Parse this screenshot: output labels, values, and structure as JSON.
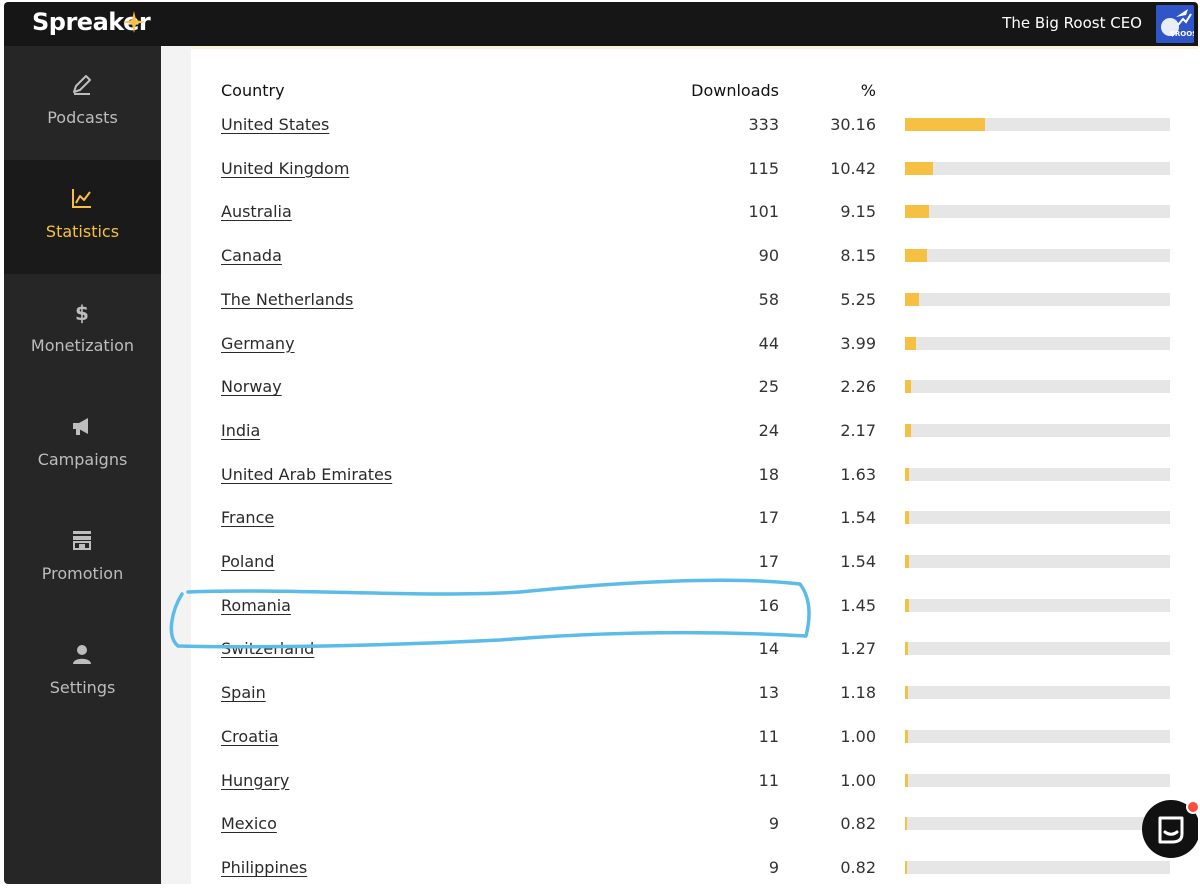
{
  "header": {
    "logo": "Spreaker",
    "user_name": "The Big Roost CEO",
    "avatar_text": "$ROOS"
  },
  "sidebar": {
    "items": [
      {
        "label": "Podcasts",
        "icon": "pencil-icon",
        "active": false
      },
      {
        "label": "Statistics",
        "icon": "chart-icon",
        "active": true
      },
      {
        "label": "Monetization",
        "icon": "dollar-icon",
        "active": false
      },
      {
        "label": "Campaigns",
        "icon": "megaphone-icon",
        "active": false
      },
      {
        "label": "Promotion",
        "icon": "storefront-icon",
        "active": false
      },
      {
        "label": "Settings",
        "icon": "user-icon",
        "active": false
      }
    ]
  },
  "table": {
    "headers": {
      "country": "Country",
      "downloads": "Downloads",
      "percent": "%"
    },
    "highlighted_country": "Romania",
    "rows": [
      {
        "country": "United States",
        "downloads": "333",
        "percent": "30.16"
      },
      {
        "country": "United Kingdom",
        "downloads": "115",
        "percent": "10.42"
      },
      {
        "country": "Australia",
        "downloads": "101",
        "percent": "9.15"
      },
      {
        "country": "Canada",
        "downloads": "90",
        "percent": "8.15"
      },
      {
        "country": "The Netherlands",
        "downloads": "58",
        "percent": "5.25"
      },
      {
        "country": "Germany",
        "downloads": "44",
        "percent": "3.99"
      },
      {
        "country": "Norway",
        "downloads": "25",
        "percent": "2.26"
      },
      {
        "country": "India",
        "downloads": "24",
        "percent": "2.17"
      },
      {
        "country": "United Arab Emirates",
        "downloads": "18",
        "percent": "1.63"
      },
      {
        "country": "France",
        "downloads": "17",
        "percent": "1.54"
      },
      {
        "country": "Poland",
        "downloads": "17",
        "percent": "1.54"
      },
      {
        "country": "Romania",
        "downloads": "16",
        "percent": "1.45"
      },
      {
        "country": "Switzerland",
        "downloads": "14",
        "percent": "1.27"
      },
      {
        "country": "Spain",
        "downloads": "13",
        "percent": "1.18"
      },
      {
        "country": "Croatia",
        "downloads": "11",
        "percent": "1.00"
      },
      {
        "country": "Hungary",
        "downloads": "11",
        "percent": "1.00"
      },
      {
        "country": "Mexico",
        "downloads": "9",
        "percent": "0.82"
      },
      {
        "country": "Philippines",
        "downloads": "9",
        "percent": "0.82"
      }
    ]
  },
  "colors": {
    "accent": "#f6c142",
    "sidebar_bg": "#262626",
    "topbar_bg": "#161616",
    "highlight_stroke": "#5bbbe9"
  },
  "chat": {
    "icon": "chat-icon"
  }
}
